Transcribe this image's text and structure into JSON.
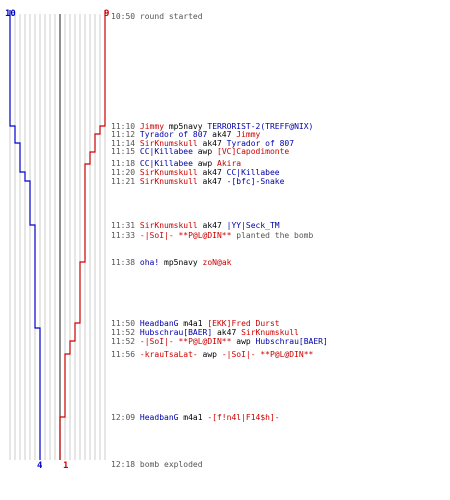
{
  "colors": {
    "team_blue": "#0000cc",
    "team_red": "#cc0000",
    "grid": "#aaaaaa",
    "center_line": "#444444"
  },
  "scores": {
    "blue_start": "10",
    "red_start": "9",
    "blue_end": "4",
    "red_end": "1"
  },
  "events": [
    {
      "time": "10:50",
      "parts": [
        {
          "text": "round started",
          "style": "gray"
        }
      ]
    },
    {
      "time": "11:10",
      "parts": [
        {
          "text": "Jimmy",
          "style": "red"
        },
        {
          "text": " mp5navy ",
          "style": "plain"
        },
        {
          "text": "TERRORIST-2(TREFF@NIX)",
          "style": "blue"
        }
      ]
    },
    {
      "time": "11:12",
      "parts": [
        {
          "text": "Tyrador of 807",
          "style": "blue"
        },
        {
          "text": " ak47 ",
          "style": "plain"
        },
        {
          "text": "Jimmy",
          "style": "red"
        }
      ]
    },
    {
      "time": "11:14",
      "parts": [
        {
          "text": "SirKnumskull",
          "style": "red"
        },
        {
          "text": " ak47 ",
          "style": "plain"
        },
        {
          "text": "Tyrador of 807",
          "style": "blue"
        }
      ]
    },
    {
      "time": "11:15",
      "parts": [
        {
          "text": "CC|Killabee",
          "style": "blue"
        },
        {
          "text": " awp ",
          "style": "plain"
        },
        {
          "text": "[VC]Capodimonte",
          "style": "red"
        }
      ]
    },
    {
      "time": "11:18",
      "parts": [
        {
          "text": "CC|Killabee",
          "style": "blue"
        },
        {
          "text": " awp ",
          "style": "plain"
        },
        {
          "text": "Akira",
          "style": "red"
        }
      ]
    },
    {
      "time": "11:20",
      "parts": [
        {
          "text": "SirKnumskull",
          "style": "red"
        },
        {
          "text": " ak47 ",
          "style": "plain"
        },
        {
          "text": "CC|Killabee",
          "style": "blue"
        }
      ]
    },
    {
      "time": "11:21",
      "parts": [
        {
          "text": "SirKnumskull",
          "style": "red"
        },
        {
          "text": " ak47 ",
          "style": "plain"
        },
        {
          "text": "-[bfc]-Snake",
          "style": "blue"
        }
      ]
    },
    {
      "time": "11:31",
      "parts": [
        {
          "text": "SirKnumskull",
          "style": "red"
        },
        {
          "text": " ak47 ",
          "style": "plain"
        },
        {
          "text": "|YY|Seck_TM",
          "style": "blue"
        }
      ]
    },
    {
      "time": "11:33",
      "parts": [
        {
          "text": "-|SoI|- **P@L@DIN**",
          "style": "red"
        },
        {
          "text": " planted the bomb",
          "style": "gray"
        }
      ]
    },
    {
      "time": "11:38",
      "parts": [
        {
          "text": "oha!",
          "style": "blue"
        },
        {
          "text": " mp5navy ",
          "style": "plain"
        },
        {
          "text": "zoN@ak",
          "style": "red"
        }
      ]
    },
    {
      "time": "11:50",
      "parts": [
        {
          "text": "HeadbanG",
          "style": "blue"
        },
        {
          "text": " m4a1 ",
          "style": "plain"
        },
        {
          "text": "[EKK]Fred Durst",
          "style": "red"
        }
      ]
    },
    {
      "time": "11:52",
      "parts": [
        {
          "text": "Hubschrau[BAER]",
          "style": "blue"
        },
        {
          "text": " ak47 ",
          "style": "plain"
        },
        {
          "text": "SirKnumskull",
          "style": "red"
        }
      ]
    },
    {
      "time": "11:52",
      "parts": [
        {
          "text": "-|SoI|- **P@L@DIN**",
          "style": "red"
        },
        {
          "text": " awp ",
          "style": "plain"
        },
        {
          "text": "Hubschrau[BAER]",
          "style": "blue"
        }
      ]
    },
    {
      "time": "11:56",
      "parts": [
        {
          "text": "-krauTsaLat-",
          "style": "red"
        },
        {
          "text": " awp ",
          "style": "plain"
        },
        {
          "text": "-|SoI|- **P@L@DIN**",
          "style": "red"
        }
      ]
    },
    {
      "time": "12:09",
      "parts": [
        {
          "text": "HeadbanG",
          "style": "blue"
        },
        {
          "text": " m4a1 ",
          "style": "plain"
        },
        {
          "text": "-[f!n4l|F14$h]-",
          "style": "red"
        }
      ]
    },
    {
      "time": "12:18",
      "parts": [
        {
          "text": "bomb exploded",
          "style": "gray"
        }
      ]
    }
  ]
}
